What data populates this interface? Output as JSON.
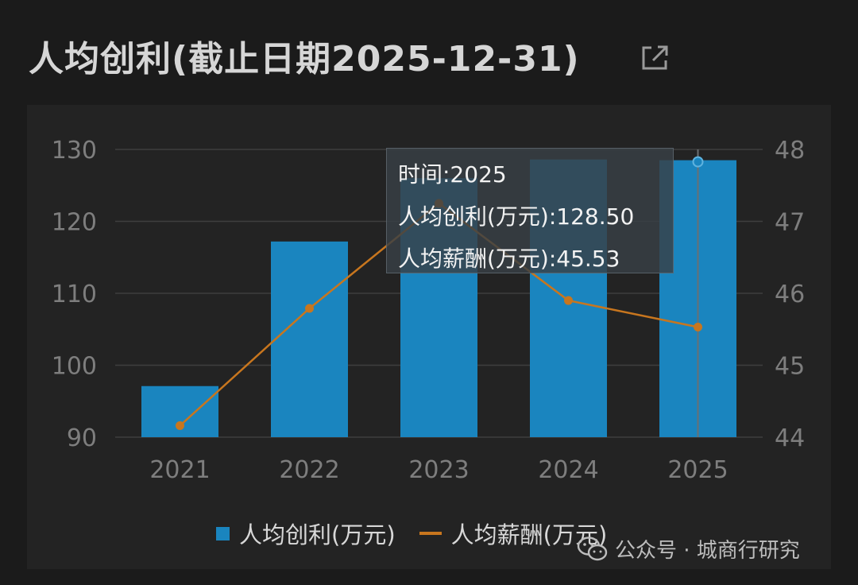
{
  "title": "人均创利(截止日期2025-12-31)",
  "icons": {
    "share": "share-icon",
    "wechat": "wechat-icon"
  },
  "colors": {
    "bar": "#1a85bf",
    "line": "#c8761e",
    "grid": "#3e3e3e",
    "axis_text": "#7e7e7e"
  },
  "chart_data": {
    "type": "bar+line",
    "categories": [
      "2021",
      "2022",
      "2023",
      "2024",
      "2025"
    ],
    "series": [
      {
        "name": "人均创利(万元)",
        "type": "bar",
        "axis": "left",
        "values": [
          97.1,
          117.2,
          126.0,
          128.6,
          128.5
        ]
      },
      {
        "name": "人均薪酬(万元)",
        "type": "line",
        "axis": "right",
        "values": [
          44.16,
          45.79,
          47.25,
          45.9,
          45.53
        ]
      }
    ],
    "y_left": {
      "min": 90,
      "max": 130,
      "ticks": [
        90,
        100,
        110,
        120,
        130
      ]
    },
    "y_right": {
      "min": 44,
      "max": 48,
      "ticks": [
        44,
        45,
        46,
        47,
        48
      ]
    },
    "grid": true,
    "legend_position": "bottom",
    "highlighted_category": "2025"
  },
  "legend": {
    "bar_label": "人均创利(万元)",
    "line_label": "人均薪酬(万元)"
  },
  "tooltip": {
    "line1": "时间:2025",
    "line2": "人均创利(万元):128.50",
    "line3": "人均薪酬(万元):45.53"
  },
  "watermark": {
    "text": "公众号 · 城商行研究"
  }
}
